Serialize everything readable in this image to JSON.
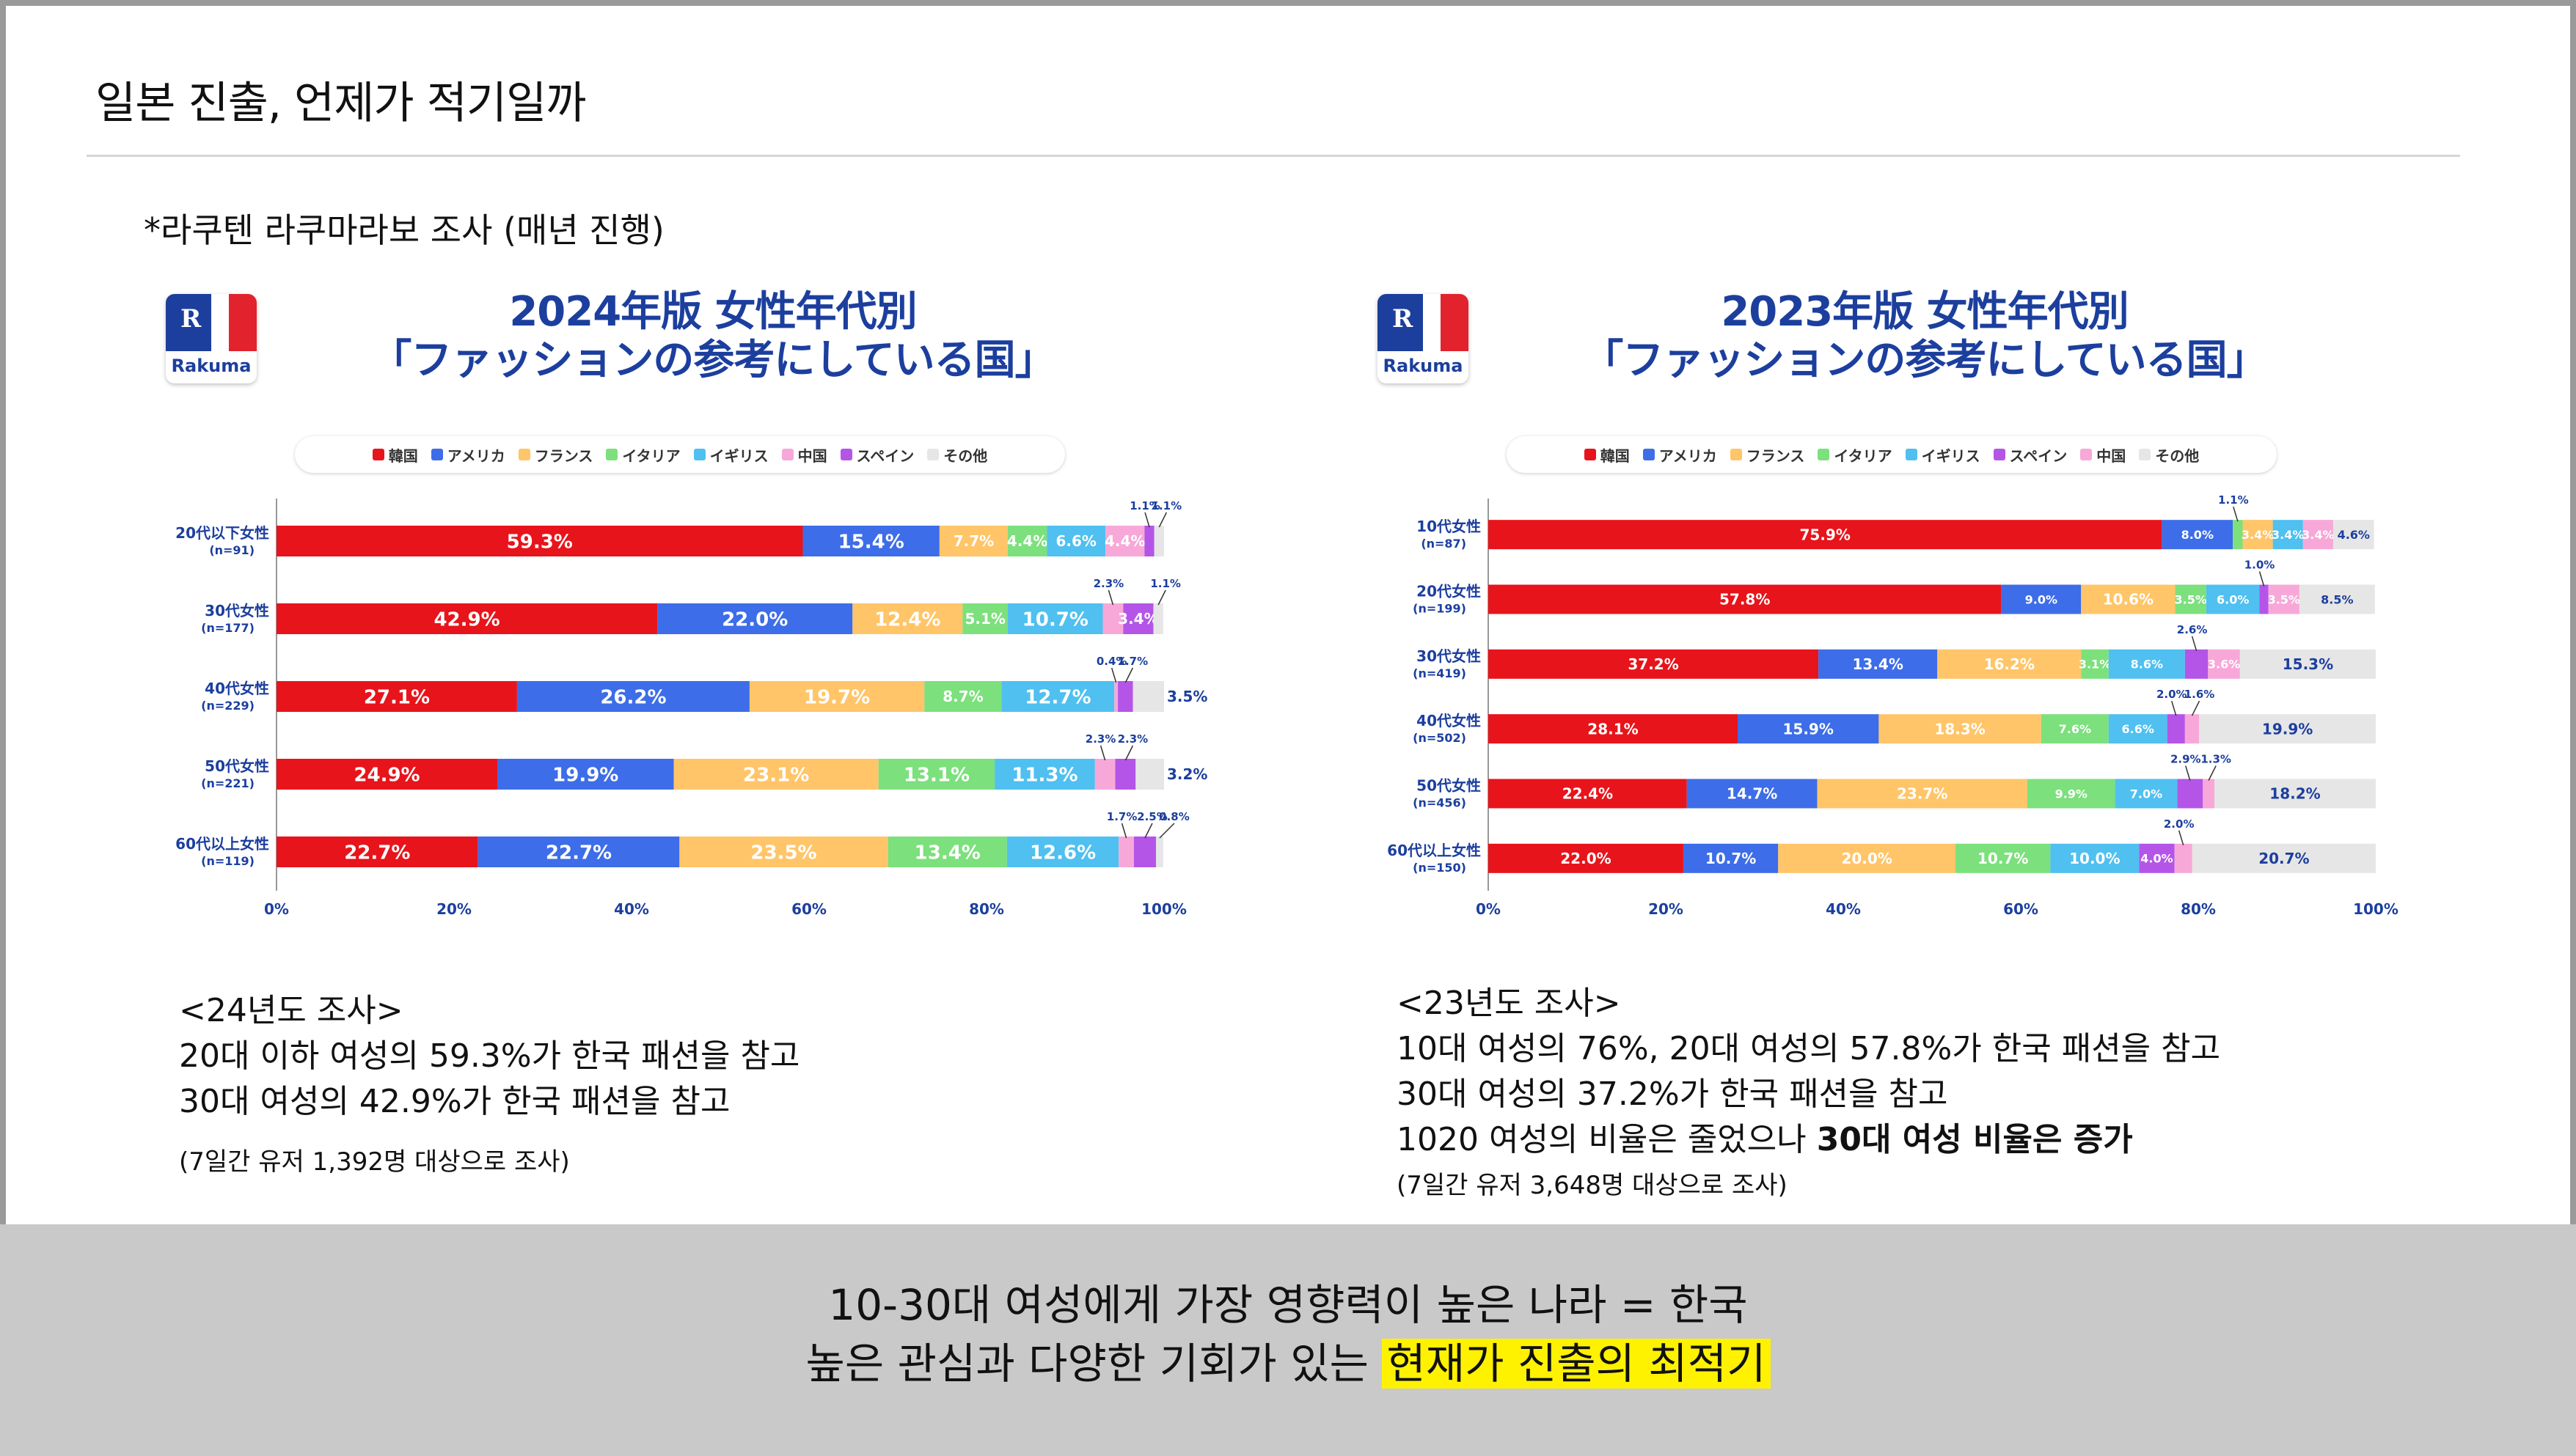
{
  "slide": {
    "title": "일본 진출, 언제가 적기일까",
    "source_note": "*라쿠텐 라쿠마라보 조사 (매년 진행)",
    "brand": "Rakuma",
    "brand_mark": "R"
  },
  "colors": {
    "韓国": "#e8141b",
    "アメリカ": "#3d6de8",
    "フランス": "#ffc568",
    "イタリア": "#7ce07c",
    "イギリス": "#4fc0f0",
    "中国": "#f7a8d8",
    "スペイン": "#b455e8",
    "その他": "#e6e6e6"
  },
  "chart_data": [
    {
      "type": "bar",
      "orientation": "horizontal",
      "stacked": true,
      "title_line1": "2024年版 女性年代別",
      "title_line2": "「ファッションの参考にしている国」",
      "legend": [
        "韓国",
        "アメリカ",
        "フランス",
        "イタリア",
        "イギリス",
        "中国",
        "スペイン",
        "その他"
      ],
      "categories": [
        {
          "label": "20代以下女性",
          "n": "(n=91)"
        },
        {
          "label": "30代女性",
          "n": "(n=177)"
        },
        {
          "label": "40代女性",
          "n": "(n=229)"
        },
        {
          "label": "50代女性",
          "n": "(n=221)"
        },
        {
          "label": "60代以上女性",
          "n": "(n=119)"
        }
      ],
      "x_ticks": [
        "0%",
        "20%",
        "40%",
        "60%",
        "80%",
        "100%"
      ],
      "xlim": [
        0,
        100
      ],
      "rows": [
        {
          "segments": [
            {
              "country": "韓国",
              "value": 59.3,
              "label": "59.3%"
            },
            {
              "country": "アメリカ",
              "value": 15.4,
              "label": "15.4%"
            },
            {
              "country": "フランス",
              "value": 7.7,
              "label": "7.7%"
            },
            {
              "country": "イタリア",
              "value": 4.4,
              "label": "4.4%"
            },
            {
              "country": "イギリス",
              "value": 6.6,
              "label": "6.6%"
            },
            {
              "country": "中国",
              "value": 4.4,
              "label": "4.4%"
            },
            {
              "country": "スペイン",
              "value": 1.1,
              "label": "1.1%",
              "callout": true
            },
            {
              "country": "その他",
              "value": 1.1,
              "label": "1.1%",
              "callout": true
            }
          ]
        },
        {
          "segments": [
            {
              "country": "韓国",
              "value": 42.9,
              "label": "42.9%"
            },
            {
              "country": "アメリカ",
              "value": 22.0,
              "label": "22.0%"
            },
            {
              "country": "フランス",
              "value": 12.4,
              "label": "12.4%"
            },
            {
              "country": "イタリア",
              "value": 5.1,
              "label": "5.1%"
            },
            {
              "country": "イギリス",
              "value": 10.7,
              "label": "10.7%"
            },
            {
              "country": "中国",
              "value": 2.3,
              "label": "2.3%",
              "callout": true
            },
            {
              "country": "スペイン",
              "value": 3.4,
              "label": "3.4%"
            },
            {
              "country": "その他",
              "value": 1.1,
              "label": "1.1%",
              "callout": true
            }
          ]
        },
        {
          "segments": [
            {
              "country": "韓国",
              "value": 27.1,
              "label": "27.1%"
            },
            {
              "country": "アメリカ",
              "value": 26.2,
              "label": "26.2%"
            },
            {
              "country": "フランス",
              "value": 19.7,
              "label": "19.7%"
            },
            {
              "country": "イタリア",
              "value": 8.7,
              "label": "8.7%"
            },
            {
              "country": "イギリス",
              "value": 12.7,
              "label": "12.7%"
            },
            {
              "country": "中国",
              "value": 0.4,
              "label": "0.4%",
              "callout": true
            },
            {
              "country": "スペイン",
              "value": 1.7,
              "label": "1.7%",
              "callout": true
            },
            {
              "country": "その他",
              "value": 3.5,
              "label": "3.5%",
              "outside": true
            }
          ]
        },
        {
          "segments": [
            {
              "country": "韓国",
              "value": 24.9,
              "label": "24.9%"
            },
            {
              "country": "アメリカ",
              "value": 19.9,
              "label": "19.9%"
            },
            {
              "country": "フランス",
              "value": 23.1,
              "label": "23.1%"
            },
            {
              "country": "イタリア",
              "value": 13.1,
              "label": "13.1%"
            },
            {
              "country": "イギリス",
              "value": 11.3,
              "label": "11.3%"
            },
            {
              "country": "中国",
              "value": 2.3,
              "label": "2.3%",
              "callout": true
            },
            {
              "country": "スペイン",
              "value": 2.3,
              "label": "2.3%",
              "callout": true
            },
            {
              "country": "その他",
              "value": 3.2,
              "label": "3.2%",
              "outside": true
            }
          ]
        },
        {
          "segments": [
            {
              "country": "韓国",
              "value": 22.7,
              "label": "22.7%"
            },
            {
              "country": "アメリカ",
              "value": 22.7,
              "label": "22.7%"
            },
            {
              "country": "フランス",
              "value": 23.5,
              "label": "23.5%"
            },
            {
              "country": "イタリア",
              "value": 13.4,
              "label": "13.4%"
            },
            {
              "country": "イギリス",
              "value": 12.6,
              "label": "12.6%"
            },
            {
              "country": "中国",
              "value": 1.7,
              "label": "1.7%",
              "callout": true
            },
            {
              "country": "スペイン",
              "value": 2.5,
              "label": "2.5%",
              "callout": true
            },
            {
              "country": "その他",
              "value": 0.8,
              "label": "0.8%",
              "callout": true
            }
          ]
        }
      ]
    },
    {
      "type": "bar",
      "orientation": "horizontal",
      "stacked": true,
      "title_line1": "2023年版 女性年代別",
      "title_line2": "「ファッションの参考にしている国」",
      "legend": [
        "韓国",
        "アメリカ",
        "フランス",
        "イタリア",
        "イギリス",
        "スペイン",
        "中国",
        "その他"
      ],
      "categories": [
        {
          "label": "10代女性",
          "n": "(n=87)"
        },
        {
          "label": "20代女性",
          "n": "(n=199)"
        },
        {
          "label": "30代女性",
          "n": "(n=419)"
        },
        {
          "label": "40代女性",
          "n": "(n=502)"
        },
        {
          "label": "50代女性",
          "n": "(n=456)"
        },
        {
          "label": "60代以上女性",
          "n": "(n=150)"
        }
      ],
      "x_ticks": [
        "0%",
        "20%",
        "40%",
        "60%",
        "80%",
        "100%"
      ],
      "xlim": [
        0,
        100
      ],
      "rows": [
        {
          "segments": [
            {
              "country": "韓国",
              "value": 75.9,
              "label": "75.9%"
            },
            {
              "country": "アメリカ",
              "value": 8.0,
              "label": "8.0%"
            },
            {
              "country": "イタリア",
              "value": 1.1,
              "label": "1.1%",
              "callout": true
            },
            {
              "country": "フランス",
              "value": 3.4,
              "label": "3.4%"
            },
            {
              "country": "イギリス",
              "value": 3.4,
              "label": "3.4%"
            },
            {
              "country": "中国",
              "value": 3.4,
              "label": "3.4%"
            },
            {
              "country": "その他",
              "value": 4.6,
              "label": "4.6%"
            }
          ]
        },
        {
          "segments": [
            {
              "country": "韓国",
              "value": 57.8,
              "label": "57.8%"
            },
            {
              "country": "アメリカ",
              "value": 9.0,
              "label": "9.0%"
            },
            {
              "country": "フランス",
              "value": 10.6,
              "label": "10.6%"
            },
            {
              "country": "イタリア",
              "value": 3.5,
              "label": "3.5%"
            },
            {
              "country": "イギリス",
              "value": 6.0,
              "label": "6.0%"
            },
            {
              "country": "スペイン",
              "value": 1.0,
              "label": "1.0%",
              "callout": true
            },
            {
              "country": "中国",
              "value": 3.5,
              "label": "3.5%"
            },
            {
              "country": "その他",
              "value": 8.5,
              "label": "8.5%"
            }
          ]
        },
        {
          "segments": [
            {
              "country": "韓国",
              "value": 37.2,
              "label": "37.2%"
            },
            {
              "country": "アメリカ",
              "value": 13.4,
              "label": "13.4%"
            },
            {
              "country": "フランス",
              "value": 16.2,
              "label": "16.2%"
            },
            {
              "country": "イタリア",
              "value": 3.1,
              "label": "3.1%"
            },
            {
              "country": "イギリス",
              "value": 8.6,
              "label": "8.6%"
            },
            {
              "country": "スペイン",
              "value": 2.6,
              "label": "2.6%",
              "callout": true
            },
            {
              "country": "中国",
              "value": 3.6,
              "label": "3.6%"
            },
            {
              "country": "その他",
              "value": 15.3,
              "label": "15.3%"
            }
          ]
        },
        {
          "segments": [
            {
              "country": "韓国",
              "value": 28.1,
              "label": "28.1%"
            },
            {
              "country": "アメリカ",
              "value": 15.9,
              "label": "15.9%"
            },
            {
              "country": "フランス",
              "value": 18.3,
              "label": "18.3%"
            },
            {
              "country": "イタリア",
              "value": 7.6,
              "label": "7.6%"
            },
            {
              "country": "イギリス",
              "value": 6.6,
              "label": "6.6%"
            },
            {
              "country": "スペイン",
              "value": 2.0,
              "label": "2.0%",
              "callout": true
            },
            {
              "country": "中国",
              "value": 1.6,
              "label": "1.6%",
              "callout": true
            },
            {
              "country": "その他",
              "value": 19.9,
              "label": "19.9%"
            }
          ]
        },
        {
          "segments": [
            {
              "country": "韓国",
              "value": 22.4,
              "label": "22.4%"
            },
            {
              "country": "アメリカ",
              "value": 14.7,
              "label": "14.7%"
            },
            {
              "country": "フランス",
              "value": 23.7,
              "label": "23.7%"
            },
            {
              "country": "イタリア",
              "value": 9.9,
              "label": "9.9%"
            },
            {
              "country": "イギリス",
              "value": 7.0,
              "label": "7.0%"
            },
            {
              "country": "スペイン",
              "value": 2.9,
              "label": "2.9%",
              "callout": true
            },
            {
              "country": "中国",
              "value": 1.3,
              "label": "1.3%",
              "callout": true
            },
            {
              "country": "その他",
              "value": 18.2,
              "label": "18.2%"
            }
          ]
        },
        {
          "segments": [
            {
              "country": "韓国",
              "value": 22.0,
              "label": "22.0%"
            },
            {
              "country": "アメリカ",
              "value": 10.7,
              "label": "10.7%"
            },
            {
              "country": "フランス",
              "value": 20.0,
              "label": "20.0%"
            },
            {
              "country": "イタリア",
              "value": 10.7,
              "label": "10.7%"
            },
            {
              "country": "イギリス",
              "value": 10.0,
              "label": "10.0%"
            },
            {
              "country": "スペイン",
              "value": 4.0,
              "label": "4.0%"
            },
            {
              "country": "中国",
              "value": 2.0,
              "label": "2.0%",
              "callout": true
            },
            {
              "country": "その他",
              "value": 20.7,
              "label": "20.7%"
            }
          ]
        }
      ]
    }
  ],
  "summary_2024": {
    "heading": "<24년도 조사>",
    "line1": "20대 이하 여성의 59.3%가 한국 패션을 참고",
    "line2": "30대 여성의 42.9%가 한국 패션을 참고",
    "footnote": "(7일간 유저 1,392명 대상으로 조사)"
  },
  "summary_2023": {
    "heading": "<23년도 조사>",
    "line1": "10대 여성의 76%, 20대 여성의 57.8%가 한국 패션을 참고",
    "line2": "30대 여성의 37.2%가 한국 패션을 참고",
    "line3_a": "1020 여성의 비율은 줄었으나 ",
    "line3_b": "30대 여성 비율은 증가",
    "footnote": "(7일간 유저 3,648명 대상으로 조사)"
  },
  "conclusion": {
    "line1": "10-30대 여성에게 가장 영향력이 높은 나라 = 한국",
    "line2_a": "높은 관심과 다양한 기회가 있는 ",
    "line2_b": "현재가 진출의 최적기"
  }
}
